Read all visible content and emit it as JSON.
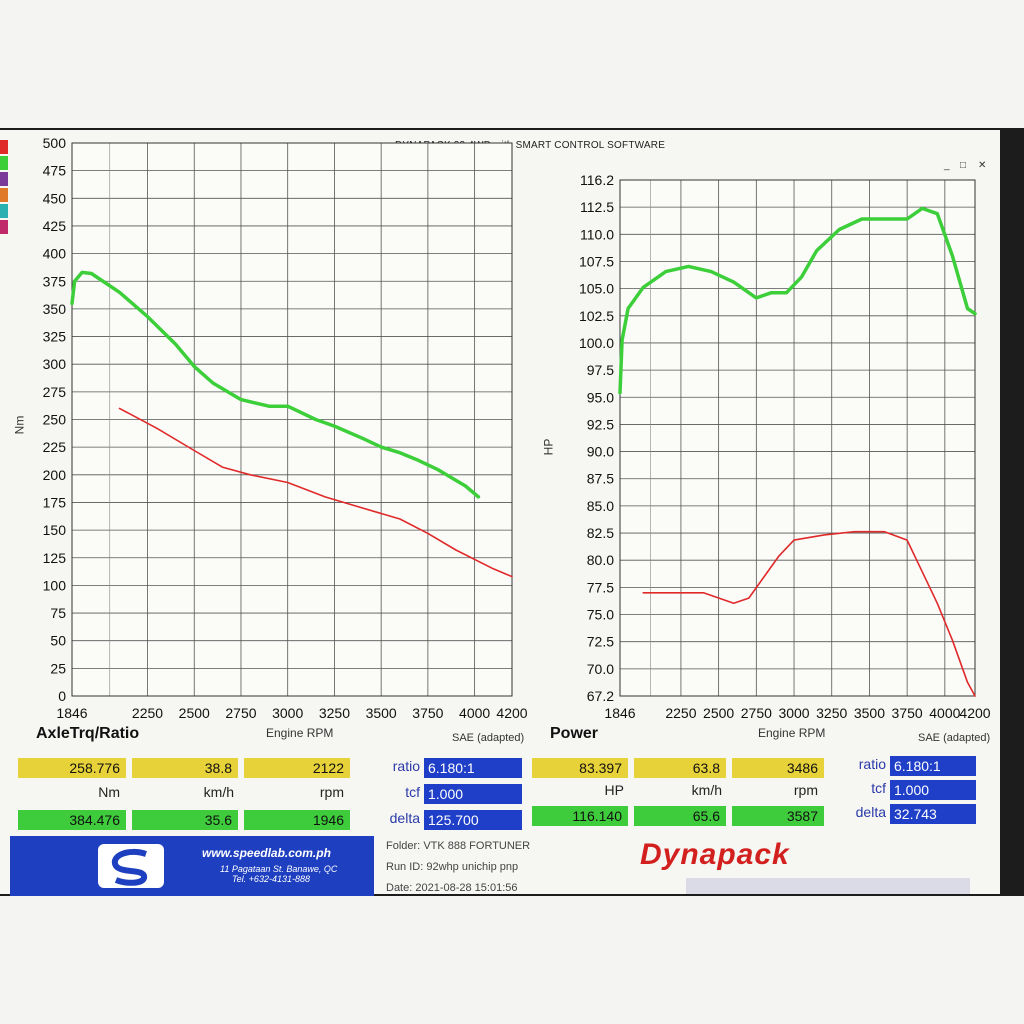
{
  "app_title": "DYNAPACK 33 4WD with SMART CONTROL SOFTWARE",
  "left_chart": {
    "ylabel": "Nm",
    "y_ticks": [
      "500",
      "475",
      "450",
      "425",
      "400",
      "375",
      "350",
      "325",
      "300",
      "275",
      "250",
      "225",
      "200",
      "175",
      "150",
      "125",
      "100",
      "75",
      "50",
      "25",
      "0"
    ],
    "x_ticks": [
      "1846",
      "2250",
      "2500",
      "2750",
      "3000",
      "3250",
      "3500",
      "3750",
      "4000",
      "4200"
    ],
    "xlabel": "Engine RPM",
    "note": "SAE (adapted)",
    "heading": "AxleTrq/Ratio"
  },
  "right_chart": {
    "ylabel": "HP",
    "y_ticks": [
      "116.2",
      "112.5",
      "110.0",
      "107.5",
      "105.0",
      "102.5",
      "100.0",
      "97.5",
      "95.0",
      "92.5",
      "90.0",
      "87.5",
      "85.0",
      "82.5",
      "80.0",
      "77.5",
      "75.0",
      "72.5",
      "70.0",
      "67.2"
    ],
    "x_ticks": [
      "1846",
      "2250",
      "2500",
      "2750",
      "3000",
      "3250",
      "3500",
      "3750",
      "4000",
      "4200"
    ],
    "xlabel": "Engine RPM",
    "note": "SAE (adapted)",
    "heading": "Power"
  },
  "chart_data": [
    {
      "type": "line",
      "title": "AxleTrq/Ratio",
      "xlabel": "Engine RPM",
      "ylabel": "Nm",
      "xlim": [
        1846,
        4200
      ],
      "ylim": [
        0,
        500
      ],
      "grid": true,
      "series": [
        {
          "color": "#3ccf3a",
          "x": [
            1846,
            1860,
            1900,
            1950,
            2100,
            2250,
            2400,
            2500,
            2600,
            2750,
            2900,
            3000,
            3150,
            3250,
            3400,
            3500,
            3600,
            3700,
            3800,
            3950,
            4020
          ],
          "y": [
            355,
            375,
            383,
            382,
            365,
            343,
            318,
            298,
            283,
            268,
            262,
            262,
            250,
            244,
            233,
            225,
            220,
            213,
            205,
            190,
            180
          ]
        },
        {
          "color": "#e02a2a",
          "x": [
            2100,
            2300,
            2500,
            2650,
            2800,
            3000,
            3200,
            3400,
            3600,
            3750,
            3900,
            4100,
            4200
          ],
          "y": [
            260,
            242,
            222,
            207,
            200,
            193,
            180,
            170,
            160,
            147,
            132,
            115,
            108
          ]
        }
      ]
    },
    {
      "type": "line",
      "title": "Power",
      "xlabel": "Engine RPM",
      "ylabel": "HP",
      "xlim": [
        1846,
        4200
      ],
      "ylim": [
        67.2,
        116.2
      ],
      "grid": true,
      "series": [
        {
          "color": "#3ccf3a",
          "x": [
            1846,
            1860,
            1900,
            2000,
            2150,
            2300,
            2450,
            2600,
            2700,
            2750,
            2850,
            2950,
            3050,
            3150,
            3300,
            3450,
            3600,
            3750,
            3850,
            3950,
            4050,
            4150,
            4200
          ],
          "y": [
            96,
            101,
            104,
            106,
            107.5,
            108,
            107.5,
            106.5,
            105.5,
            105,
            105.5,
            105.5,
            107,
            109.5,
            111.5,
            112.5,
            112.5,
            112.5,
            113.5,
            113,
            109,
            104,
            103.5
          ]
        },
        {
          "color": "#e02a2a",
          "x": [
            2000,
            2200,
            2400,
            2600,
            2700,
            2800,
            2900,
            3000,
            3200,
            3400,
            3600,
            3750,
            3850,
            3950,
            4050,
            4150,
            4200
          ],
          "y": [
            77,
            77,
            77,
            76,
            76.5,
            78.5,
            80.5,
            82,
            82.5,
            82.8,
            82.8,
            82,
            79,
            76,
            72.5,
            68.5,
            67.2
          ]
        }
      ]
    }
  ],
  "left_readout": {
    "row1": [
      "258.776",
      "38.8",
      "2122"
    ],
    "units": [
      "Nm",
      "km/h",
      "rpm"
    ],
    "row2": [
      "384.476",
      "35.6",
      "1946"
    ],
    "keys": [
      "ratio",
      "tcf",
      "delta"
    ],
    "key_values": [
      "6.180:1",
      "1.000",
      "125.700"
    ]
  },
  "right_readout": {
    "row1": [
      "83.397",
      "63.8",
      "3486"
    ],
    "units": [
      "HP",
      "km/h",
      "rpm"
    ],
    "row2": [
      "116.140",
      "65.6",
      "3587"
    ],
    "keys": [
      "ratio",
      "tcf",
      "delta"
    ],
    "key_values": [
      "6.180:1",
      "1.000",
      "32.743"
    ]
  },
  "footer": {
    "website": "www.speedlab.com.ph",
    "address": "11 Pagataan St. Banawe, QC",
    "phone": "Tel. +632-4131-888",
    "folder_label": "Folder:",
    "folder_value": "VTK 888 FORTUNER",
    "runid_label": "Run ID:",
    "runid_value": "92whp unichip pnp",
    "date_label": "Date:",
    "date_value": "2021-08-28 15:01:56",
    "brand": "Dynapack"
  },
  "colors": {
    "torque_power_curve": "#3ccf3a",
    "secondary_curve": "#e02a2a",
    "value_yellow": "#e8d23a",
    "value_green": "#3fcc3c",
    "value_blue": "#1f3fc8",
    "brand_red": "#d2201e"
  }
}
